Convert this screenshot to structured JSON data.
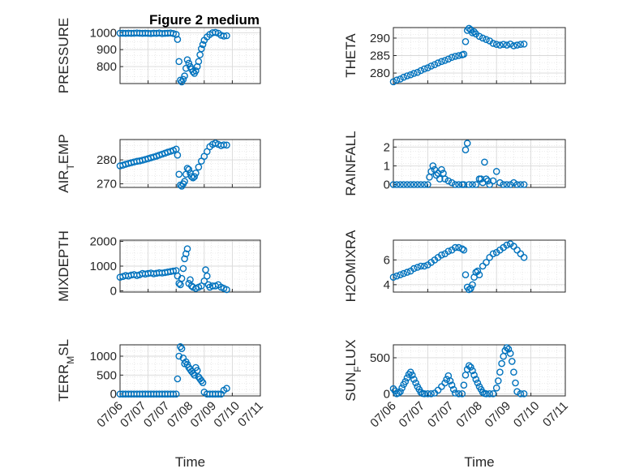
{
  "title": "Figure 2 medium",
  "colors": {
    "marker": "#0072BD",
    "axis": "#262626",
    "grid": "#d9d9d9"
  },
  "chart_data": [
    {
      "type": "scatter",
      "ylabel": "PRESSURE",
      "xlabel": "",
      "ylim": [
        700,
        1030
      ],
      "yticks": [
        800,
        900,
        1000
      ],
      "xlim": [
        0,
        5
      ],
      "xticks": [
        "07/06",
        "07/07",
        "07/07",
        "07/08",
        "07/09",
        "07/10",
        "07/11"
      ],
      "show_xticklabels": false,
      "x": [
        0,
        0.1,
        0.2,
        0.3,
        0.4,
        0.5,
        0.6,
        0.7,
        0.8,
        0.9,
        1.0,
        1.1,
        1.2,
        1.3,
        1.4,
        1.5,
        1.6,
        1.7,
        1.8,
        1.9,
        2.0,
        2.05,
        2.1,
        2.15,
        2.2,
        2.25,
        2.3,
        2.35,
        2.4,
        2.45,
        2.5,
        2.55,
        2.6,
        2.65,
        2.7,
        2.75,
        2.8,
        2.85,
        2.9,
        2.95,
        3.0,
        3.1,
        3.2,
        3.3,
        3.4,
        3.5,
        3.6,
        3.7,
        3.8
      ],
      "y": [
        997,
        997,
        996,
        997,
        996,
        997,
        998,
        997,
        996,
        997,
        996,
        995,
        997,
        996,
        998,
        995,
        996,
        997,
        998,
        995,
        990,
        960,
        830,
        720,
        710,
        725,
        745,
        790,
        840,
        820,
        800,
        785,
        770,
        760,
        775,
        800,
        830,
        870,
        905,
        930,
        955,
        975,
        990,
        1000,
        1002,
        997,
        985,
        980,
        982
      ]
    },
    {
      "type": "scatter",
      "ylabel": "THETA",
      "xlabel": "",
      "ylim": [
        277,
        293
      ],
      "yticks": [
        280,
        285,
        290
      ],
      "xlim": [
        0,
        5
      ],
      "show_xticklabels": false,
      "x": [
        0,
        0.1,
        0.2,
        0.3,
        0.4,
        0.5,
        0.6,
        0.7,
        0.8,
        0.9,
        1.0,
        1.1,
        1.2,
        1.3,
        1.4,
        1.5,
        1.6,
        1.7,
        1.8,
        1.9,
        2.0,
        2.05,
        2.1,
        2.15,
        2.2,
        2.25,
        2.3,
        2.35,
        2.4,
        2.5,
        2.6,
        2.7,
        2.8,
        2.9,
        3.0,
        3.1,
        3.2,
        3.3,
        3.4,
        3.5,
        3.6,
        3.7,
        3.8
      ],
      "y": [
        277.5,
        278,
        278.3,
        278.8,
        279.2,
        279.5,
        279.9,
        280.2,
        280.7,
        281.2,
        281.5,
        282,
        282.4,
        282.9,
        283.3,
        283.6,
        284,
        284.5,
        284.8,
        285,
        285.2,
        285.4,
        289,
        292.2,
        292.8,
        292.4,
        291.5,
        291.8,
        291.2,
        290.5,
        290,
        289.6,
        289.2,
        288.5,
        288.2,
        288,
        288.2,
        288,
        288.3,
        287.8,
        288,
        288.2,
        288.3
      ]
    },
    {
      "type": "scatter",
      "ylabel": "AIR_TEMP",
      "xlabel": "",
      "ylim": [
        268.5,
        288.5
      ],
      "yticks": [
        270,
        280
      ],
      "xlim": [
        0,
        5
      ],
      "show_xticklabels": false,
      "x": [
        0,
        0.1,
        0.2,
        0.3,
        0.4,
        0.5,
        0.6,
        0.7,
        0.8,
        0.9,
        1.0,
        1.1,
        1.2,
        1.3,
        1.4,
        1.5,
        1.6,
        1.7,
        1.8,
        1.9,
        2.0,
        2.05,
        2.1,
        2.15,
        2.2,
        2.25,
        2.3,
        2.35,
        2.4,
        2.45,
        2.5,
        2.55,
        2.6,
        2.65,
        2.7,
        2.8,
        2.9,
        3.0,
        3.1,
        3.2,
        3.3,
        3.4,
        3.5,
        3.6,
        3.7,
        3.8
      ],
      "y": [
        277.5,
        277.8,
        278.2,
        278.5,
        278.8,
        279.1,
        279.4,
        279.6,
        279.9,
        280.2,
        280.5,
        280.9,
        281.2,
        281.6,
        282,
        282.4,
        282.8,
        283.2,
        283.6,
        284,
        284.5,
        282,
        274,
        269.5,
        269,
        270,
        271,
        274,
        276.5,
        276,
        274.5,
        273,
        272.5,
        273,
        274.5,
        277,
        279.5,
        281.5,
        283.5,
        285.5,
        286.5,
        287,
        286.5,
        286,
        286.3,
        286.2
      ]
    },
    {
      "type": "scatter",
      "ylabel": "RAINFALL",
      "xlabel": "",
      "ylim": [
        -0.15,
        2.4
      ],
      "yticks": [
        0,
        1,
        2
      ],
      "xlim": [
        0,
        5
      ],
      "show_xticklabels": false,
      "x": [
        0,
        0.1,
        0.2,
        0.3,
        0.4,
        0.5,
        0.6,
        0.7,
        0.8,
        0.9,
        1.0,
        1.05,
        1.1,
        1.15,
        1.2,
        1.25,
        1.3,
        1.35,
        1.4,
        1.45,
        1.5,
        1.6,
        1.7,
        1.8,
        1.9,
        2.0,
        2.05,
        2.1,
        2.15,
        2.2,
        2.3,
        2.4,
        2.5,
        2.55,
        2.6,
        2.65,
        2.7,
        2.75,
        2.8,
        2.9,
        3.0,
        3.1,
        3.2,
        3.3,
        3.4,
        3.5,
        3.6,
        3.7,
        3.8
      ],
      "y": [
        0,
        0,
        0,
        0,
        0,
        0,
        0,
        0,
        0,
        0,
        0,
        0.4,
        0.7,
        1.0,
        0.8,
        0.5,
        0.6,
        0.3,
        0.8,
        0.6,
        0.3,
        0.2,
        0.1,
        0,
        0,
        0,
        0,
        1.85,
        2.2,
        0,
        0,
        0,
        0.3,
        0.3,
        0.1,
        1.2,
        0.3,
        0.2,
        0,
        0.2,
        0.7,
        0.1,
        0,
        0,
        0,
        0.1,
        0,
        0,
        0
      ]
    },
    {
      "type": "scatter",
      "ylabel": "MIXDEPTH",
      "xlabel": "",
      "ylim": [
        -50,
        2050
      ],
      "yticks": [
        0,
        1000,
        2000
      ],
      "xlim": [
        0,
        5
      ],
      "show_xticklabels": false,
      "x": [
        0,
        0.1,
        0.2,
        0.3,
        0.4,
        0.5,
        0.6,
        0.7,
        0.8,
        0.9,
        1.0,
        1.1,
        1.2,
        1.3,
        1.4,
        1.5,
        1.6,
        1.7,
        1.8,
        1.9,
        2.0,
        2.05,
        2.1,
        2.15,
        2.2,
        2.25,
        2.3,
        2.35,
        2.4,
        2.45,
        2.5,
        2.55,
        2.6,
        2.7,
        2.8,
        2.9,
        3.0,
        3.05,
        3.1,
        3.15,
        3.2,
        3.3,
        3.4,
        3.5,
        3.6,
        3.7,
        3.8
      ],
      "y": [
        550,
        580,
        620,
        600,
        640,
        660,
        620,
        650,
        700,
        680,
        700,
        720,
        690,
        710,
        730,
        720,
        740,
        760,
        780,
        800,
        820,
        600,
        300,
        250,
        500,
        900,
        1300,
        1500,
        1700,
        300,
        450,
        200,
        150,
        100,
        150,
        200,
        400,
        850,
        600,
        250,
        150,
        200,
        200,
        250,
        150,
        100,
        50
      ]
    },
    {
      "type": "scatter",
      "ylabel": "H2OMIXRA",
      "xlabel": "",
      "ylim": [
        3.4,
        7.6
      ],
      "yticks": [
        4,
        6
      ],
      "xlim": [
        0,
        5
      ],
      "show_xticklabels": false,
      "x": [
        0,
        0.1,
        0.2,
        0.3,
        0.4,
        0.5,
        0.6,
        0.7,
        0.8,
        0.9,
        1.0,
        1.1,
        1.2,
        1.3,
        1.4,
        1.5,
        1.6,
        1.7,
        1.8,
        1.9,
        2.0,
        2.05,
        2.1,
        2.15,
        2.2,
        2.25,
        2.3,
        2.35,
        2.4,
        2.45,
        2.5,
        2.6,
        2.7,
        2.8,
        2.9,
        3.0,
        3.1,
        3.2,
        3.3,
        3.4,
        3.5,
        3.6,
        3.7,
        3.8
      ],
      "y": [
        4.6,
        4.7,
        4.8,
        4.9,
        5.0,
        5.1,
        5.3,
        5.4,
        5.5,
        5.5,
        5.6,
        5.8,
        6.0,
        6.2,
        6.4,
        6.5,
        6.7,
        6.8,
        7.0,
        7.0,
        6.9,
        6.8,
        4.8,
        3.8,
        3.6,
        3.7,
        4.0,
        4.6,
        5.0,
        5.1,
        4.8,
        5.5,
        5.8,
        6.2,
        6.5,
        6.6,
        6.8,
        7.0,
        7.2,
        7.3,
        7.1,
        6.8,
        6.5,
        6.2
      ]
    },
    {
      "type": "scatter",
      "ylabel": "TERR_MSL",
      "xlabel": "Time",
      "ylim": [
        -50,
        1300
      ],
      "yticks": [
        0,
        500,
        1000
      ],
      "xlim": [
        0,
        5
      ],
      "xticks": [
        "07/06",
        "07/07",
        "07/07",
        "07/08",
        "07/09",
        "07/10",
        "07/11"
      ],
      "show_xticklabels": true,
      "x": [
        0,
        0.1,
        0.2,
        0.3,
        0.4,
        0.5,
        0.6,
        0.7,
        0.8,
        0.9,
        1.0,
        1.1,
        1.2,
        1.3,
        1.4,
        1.5,
        1.6,
        1.7,
        1.8,
        1.9,
        2.0,
        2.05,
        2.1,
        2.15,
        2.2,
        2.25,
        2.3,
        2.35,
        2.4,
        2.45,
        2.5,
        2.55,
        2.6,
        2.65,
        2.7,
        2.75,
        2.8,
        2.85,
        2.9,
        2.95,
        3.0,
        3.1,
        3.2,
        3.3,
        3.4,
        3.5,
        3.6,
        3.7,
        3.8
      ],
      "y": [
        0,
        0,
        0,
        0,
        0,
        0,
        0,
        0,
        0,
        0,
        0,
        0,
        0,
        0,
        0,
        0,
        0,
        0,
        0,
        0,
        0,
        400,
        1000,
        1250,
        1200,
        950,
        800,
        850,
        780,
        700,
        650,
        600,
        550,
        500,
        700,
        620,
        450,
        400,
        350,
        300,
        50,
        0,
        0,
        0,
        0,
        0,
        0,
        100,
        150
      ]
    },
    {
      "type": "scatter",
      "ylabel": "SUN_FLUX",
      "xlabel": "Time",
      "ylim": [
        -30,
        680
      ],
      "yticks": [
        0,
        500
      ],
      "xlim": [
        0,
        5
      ],
      "xticks": [
        "07/06",
        "07/07",
        "07/07",
        "07/08",
        "07/09",
        "07/10",
        "07/11"
      ],
      "show_xticklabels": true,
      "x": [
        0,
        0.05,
        0.1,
        0.15,
        0.2,
        0.25,
        0.3,
        0.35,
        0.4,
        0.45,
        0.5,
        0.55,
        0.6,
        0.65,
        0.7,
        0.75,
        0.8,
        0.85,
        0.9,
        1.0,
        1.1,
        1.2,
        1.3,
        1.4,
        1.5,
        1.55,
        1.6,
        1.65,
        1.7,
        1.75,
        1.8,
        1.9,
        2.0,
        2.05,
        2.1,
        2.15,
        2.2,
        2.25,
        2.3,
        2.35,
        2.4,
        2.45,
        2.5,
        2.55,
        2.6,
        2.65,
        2.7,
        2.8,
        2.9,
        3.0,
        3.05,
        3.1,
        3.15,
        3.2,
        3.25,
        3.3,
        3.35,
        3.4,
        3.45,
        3.5,
        3.55,
        3.6,
        3.7,
        3.8
      ],
      "y": [
        70,
        40,
        0,
        10,
        30,
        80,
        130,
        170,
        220,
        270,
        300,
        260,
        200,
        150,
        100,
        60,
        20,
        5,
        0,
        0,
        0,
        10,
        50,
        100,
        150,
        200,
        250,
        180,
        120,
        60,
        10,
        0,
        0,
        120,
        260,
        340,
        390,
        370,
        320,
        260,
        200,
        150,
        100,
        60,
        20,
        5,
        0,
        0,
        0,
        80,
        180,
        300,
        420,
        520,
        600,
        640,
        620,
        560,
        450,
        300,
        150,
        30,
        0,
        0
      ]
    }
  ]
}
